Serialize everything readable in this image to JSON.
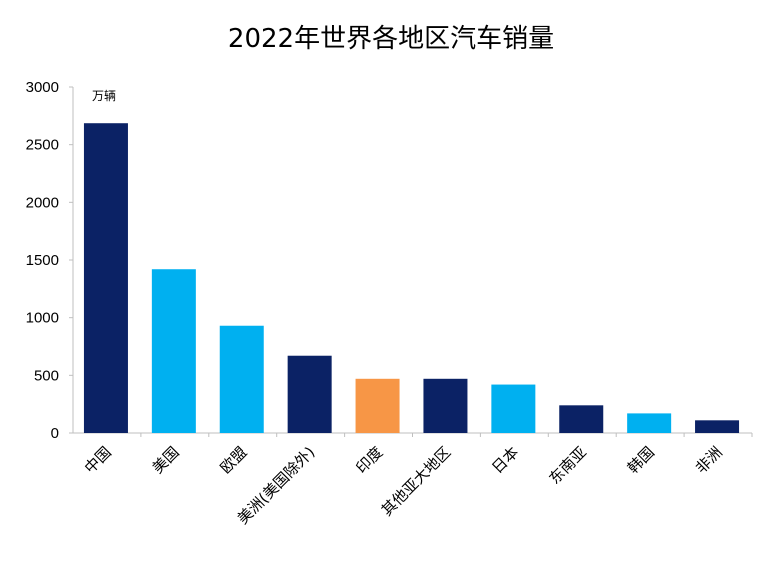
{
  "chart_data": {
    "type": "bar",
    "title": "2022年世界各地区汽车销量",
    "unit_label": "万辆",
    "categories": [
      "中国",
      "美国",
      "欧盟",
      "美洲(美国除外)",
      "印度",
      "其他亚大地区",
      "日本",
      "东南亚",
      "韩国",
      "非洲"
    ],
    "values": [
      2686,
      1420,
      930,
      670,
      470,
      470,
      420,
      240,
      170,
      110
    ],
    "colors": [
      "#0b2265",
      "#00b0f0",
      "#00b0f0",
      "#0b2265",
      "#f79646",
      "#0b2265",
      "#00b0f0",
      "#0b2265",
      "#00b0f0",
      "#0b2265"
    ],
    "ylim": [
      0,
      3000
    ],
    "yticks": [
      0,
      500,
      1000,
      1500,
      2000,
      2500,
      3000
    ],
    "grid": false,
    "xlabel": "",
    "ylabel": ""
  }
}
